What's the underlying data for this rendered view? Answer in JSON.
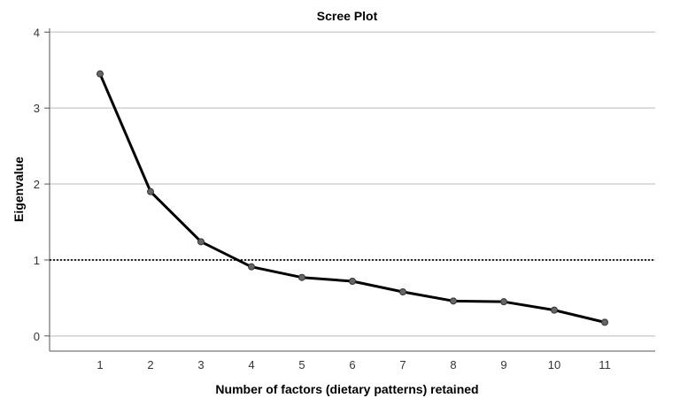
{
  "chart_data": {
    "type": "line",
    "title": "Scree Plot",
    "xlabel": "Number of factors (dietary patterns) retained",
    "ylabel": "Eigenvalue",
    "x": [
      1,
      2,
      3,
      4,
      5,
      6,
      7,
      8,
      9,
      10,
      11
    ],
    "x_tick_labels": [
      "1",
      "2",
      "3",
      "4",
      "5",
      "6",
      "7",
      "8",
      "9",
      "10",
      "11"
    ],
    "xlim": [
      0,
      12
    ],
    "y_ticks": [
      0,
      1,
      2,
      3,
      4
    ],
    "y_tick_labels": [
      "0",
      "1",
      "2",
      "3",
      "4"
    ],
    "ylim": [
      -0.2,
      4.05
    ],
    "grid": true,
    "legend": "none",
    "series": [
      {
        "values": [
          3.45,
          1.9,
          1.24,
          0.91,
          0.77,
          0.72,
          0.58,
          0.46,
          0.45,
          0.34,
          0.18
        ]
      }
    ],
    "reference_line": {
      "y": 1,
      "style": "dotted"
    },
    "colors": {
      "line": "#000000",
      "marker_fill": "#666666",
      "marker_stroke": "#333333",
      "grid": "#d0d0d0",
      "axis": "#555555",
      "reference": "#000000"
    }
  }
}
